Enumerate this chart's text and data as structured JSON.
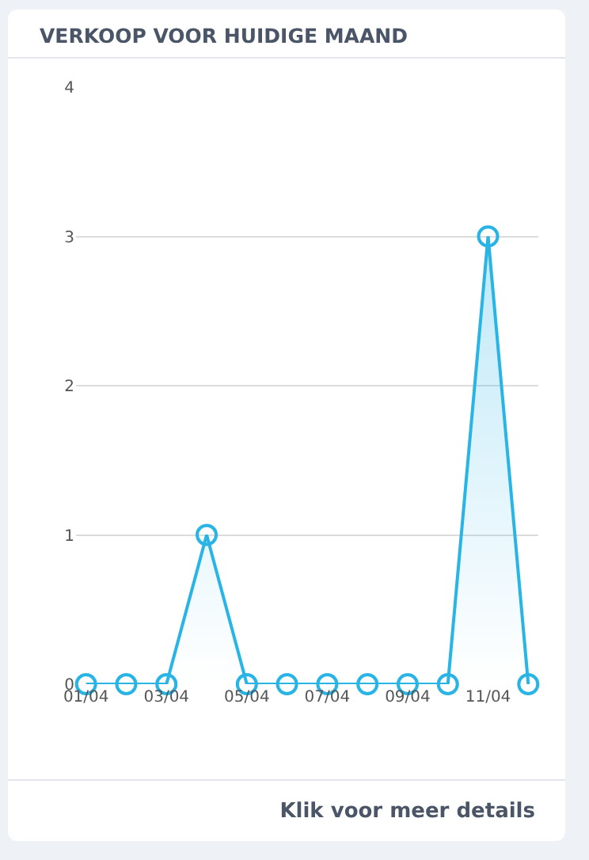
{
  "chart_data": {
    "type": "area",
    "title": "VERKOOP VOOR HUIDIGE MAAND",
    "categories": [
      "01/04",
      null,
      "03/04",
      null,
      "05/04",
      null,
      "07/04",
      null,
      "09/04",
      null,
      "11/04",
      null
    ],
    "values": [
      0,
      0,
      0,
      1,
      0,
      0,
      0,
      0,
      0,
      0,
      3,
      0
    ],
    "color": "#29b4e6",
    "ylim": [
      0,
      4
    ],
    "yticks": [
      0,
      1,
      2,
      3,
      4
    ],
    "grid": "y",
    "marker": "circle",
    "annotations": [
      "Klik voor meer details"
    ]
  }
}
